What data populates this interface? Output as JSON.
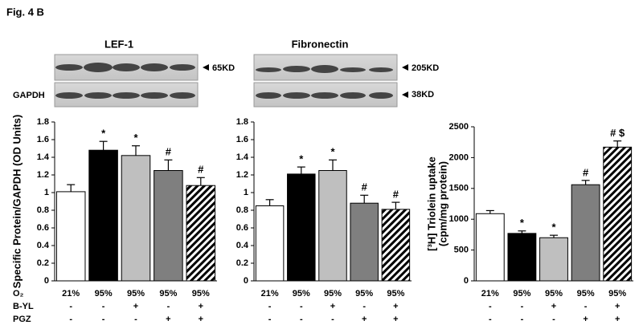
{
  "figure_title": "Fig. 4 B",
  "blots": {
    "panels": [
      {
        "title": "LEF-1",
        "marker": "65KD"
      },
      {
        "title": "Fibronectin",
        "marker": "205KD"
      }
    ],
    "loading_control": {
      "label": "GAPDH",
      "marker": "38KD"
    }
  },
  "conditions": {
    "rows": [
      {
        "label": "O₂",
        "values": [
          "21%",
          "95%",
          "95%",
          "95%",
          "95%"
        ]
      },
      {
        "label": "B-YL",
        "values": [
          "-",
          "-",
          "+",
          "-",
          "+"
        ]
      },
      {
        "label": "PGZ",
        "values": [
          "-",
          "-",
          "-",
          "+",
          "+"
        ]
      }
    ]
  },
  "chart_data": [
    {
      "type": "bar",
      "y_label": [
        "Specific Protein/GAPDH (OD Units)"
      ],
      "values": [
        1.01,
        1.48,
        1.42,
        1.25,
        1.08
      ],
      "errors": [
        0.08,
        0.1,
        0.11,
        0.12,
        0.09
      ],
      "annotations": [
        null,
        "*",
        "*",
        "#",
        "#"
      ],
      "colors": [
        "#ffffff",
        "#000000",
        "#bfbfbf",
        "#7f7f7f",
        "#000000"
      ],
      "hatched": [
        false,
        false,
        false,
        false,
        true
      ],
      "ylim": [
        0,
        1.8
      ],
      "yticks": [
        0,
        0.2,
        0.4,
        0.6,
        0.8,
        1,
        1.2,
        1.4,
        1.6,
        1.8
      ]
    },
    {
      "type": "bar",
      "values": [
        0.85,
        1.21,
        1.25,
        0.88,
        0.81
      ],
      "errors": [
        0.07,
        0.08,
        0.12,
        0.09,
        0.08
      ],
      "annotations": [
        null,
        "*",
        "*",
        "#",
        "#"
      ],
      "colors": [
        "#ffffff",
        "#000000",
        "#bfbfbf",
        "#7f7f7f",
        "#000000"
      ],
      "hatched": [
        false,
        false,
        false,
        false,
        true
      ],
      "ylim": [
        0,
        1.8
      ],
      "yticks": [
        0,
        0.2,
        0.4,
        0.6,
        0.8,
        1,
        1.2,
        1.4,
        1.6,
        1.8
      ]
    },
    {
      "type": "bar",
      "y_label": [
        "[³H] Triolein uptake",
        "(cpm/mg protein)"
      ],
      "values": [
        1090,
        770,
        700,
        1560,
        2170
      ],
      "errors": [
        50,
        40,
        40,
        70,
        100
      ],
      "annotations": [
        null,
        "*",
        "*",
        "#",
        "# $"
      ],
      "colors": [
        "#ffffff",
        "#000000",
        "#bfbfbf",
        "#7f7f7f",
        "#000000"
      ],
      "hatched": [
        false,
        false,
        false,
        false,
        true
      ],
      "ylim": [
        0,
        2500
      ],
      "yticks": [
        0,
        500,
        1000,
        1500,
        2000,
        2500
      ]
    }
  ]
}
